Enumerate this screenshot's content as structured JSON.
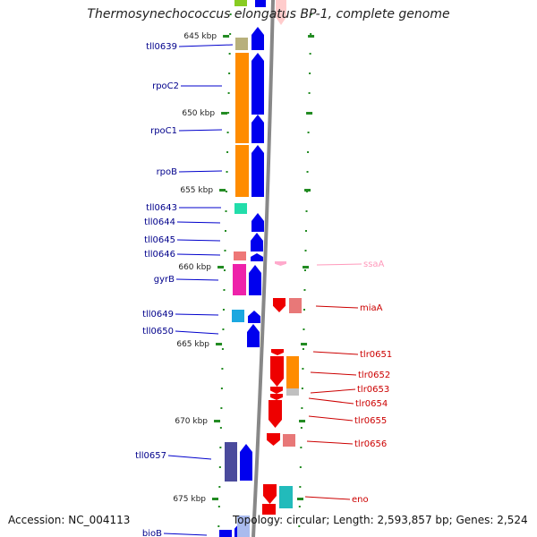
{
  "title": "Thermosynechococcus elongatus BP-1, complete genome",
  "footer": {
    "accession": "Accession: NC_004113",
    "summary": "Topology: circular; Length: 2,593,857 bp; Genes: 2,524"
  },
  "scale_labels": [
    "645 kbp",
    "650 kbp",
    "655 kbp",
    "660 kbp",
    "665 kbp",
    "670 kbp",
    "675 kbp"
  ],
  "left_genes": [
    "tll0639",
    "rpoC2",
    "rpoC1",
    "rpoB",
    "tll0643",
    "tll0644",
    "tll0645",
    "tll0646",
    "gyrB",
    "tll0649",
    "tll0650",
    "tll0657",
    "bioB"
  ],
  "right_genes": [
    "ssaA",
    "miaA",
    "tlr0651",
    "tlr0652",
    "tlr0653",
    "tlr0654",
    "tlr0655",
    "tlr0656",
    "eno"
  ],
  "colors": {
    "forward_strand": "#0000ee",
    "reverse_strand": "#ee0000",
    "left_label": "#00008b",
    "right_label": "#cc0000",
    "rna_label": "#ff99bb",
    "tick": "#228b22",
    "backbone": "#888888"
  }
}
